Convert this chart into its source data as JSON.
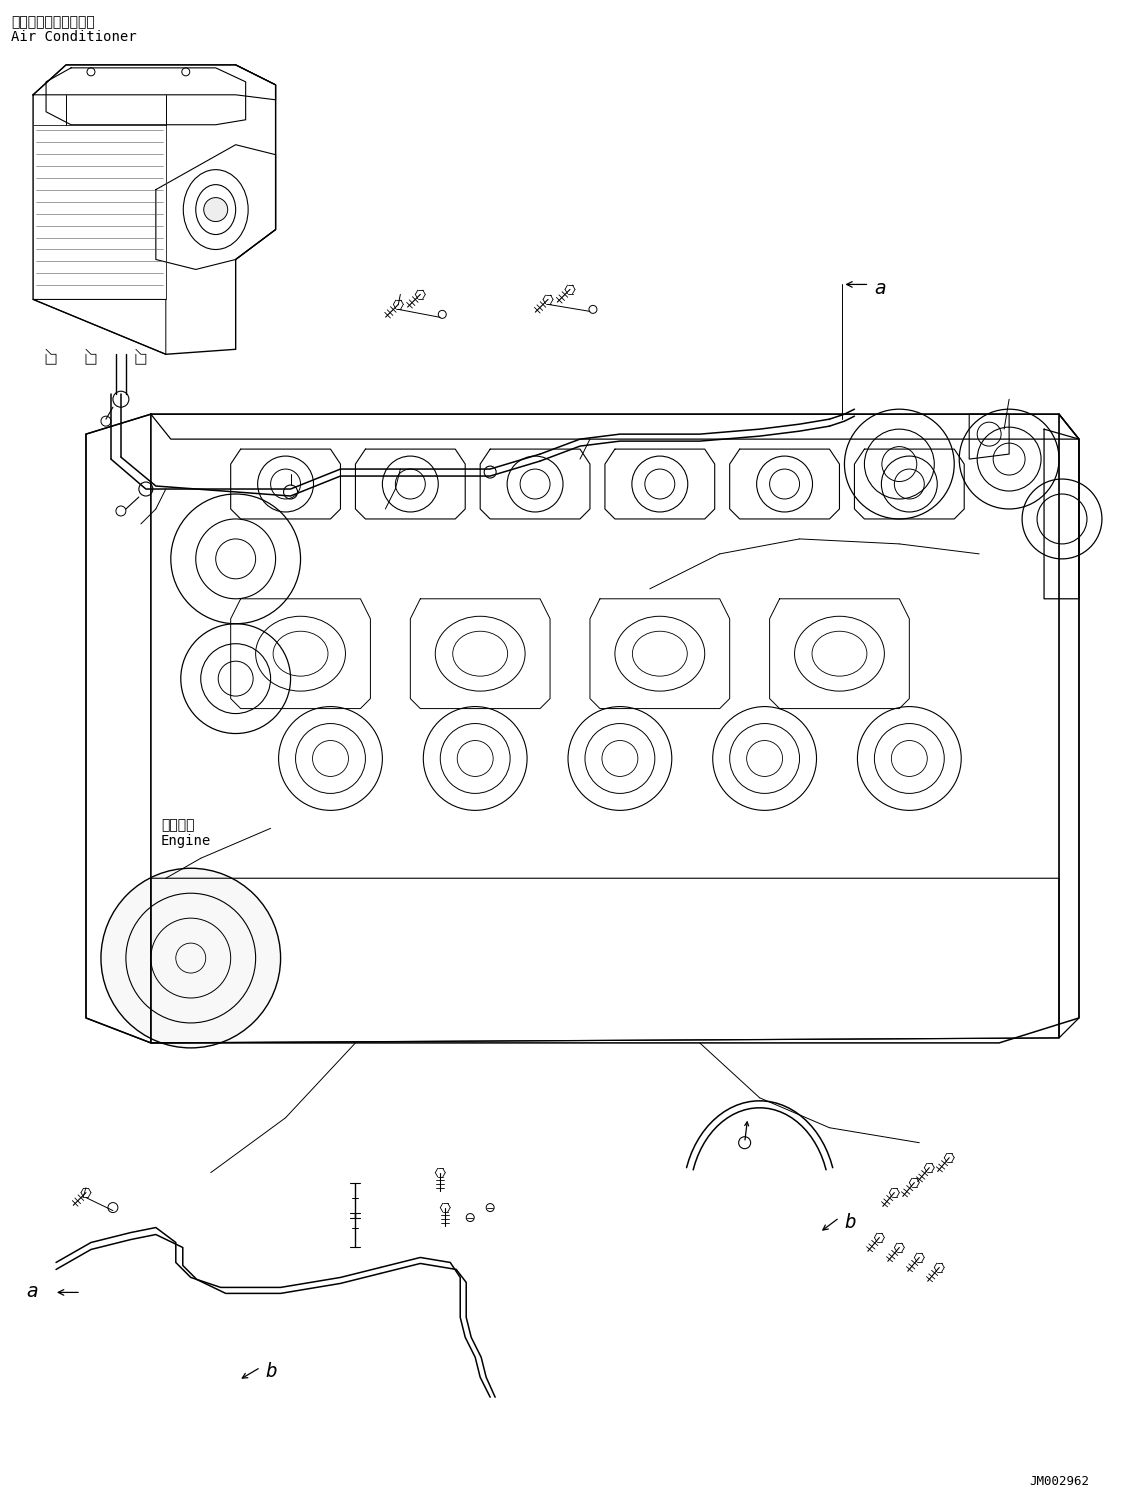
{
  "title_jp": "エアーコンディショナ",
  "title_en": "Air Conditioner",
  "engine_label_jp": "エンジン",
  "engine_label_en": "Engine",
  "label_a": "a",
  "label_b": "b",
  "diagram_id": "JM002962",
  "bg_color": "#ffffff",
  "line_color": "#000000",
  "title_fontsize": 10,
  "label_fontsize": 13,
  "diagram_id_fontsize": 9,
  "fig_width": 11.45,
  "fig_height": 14.91,
  "dpi": 100
}
